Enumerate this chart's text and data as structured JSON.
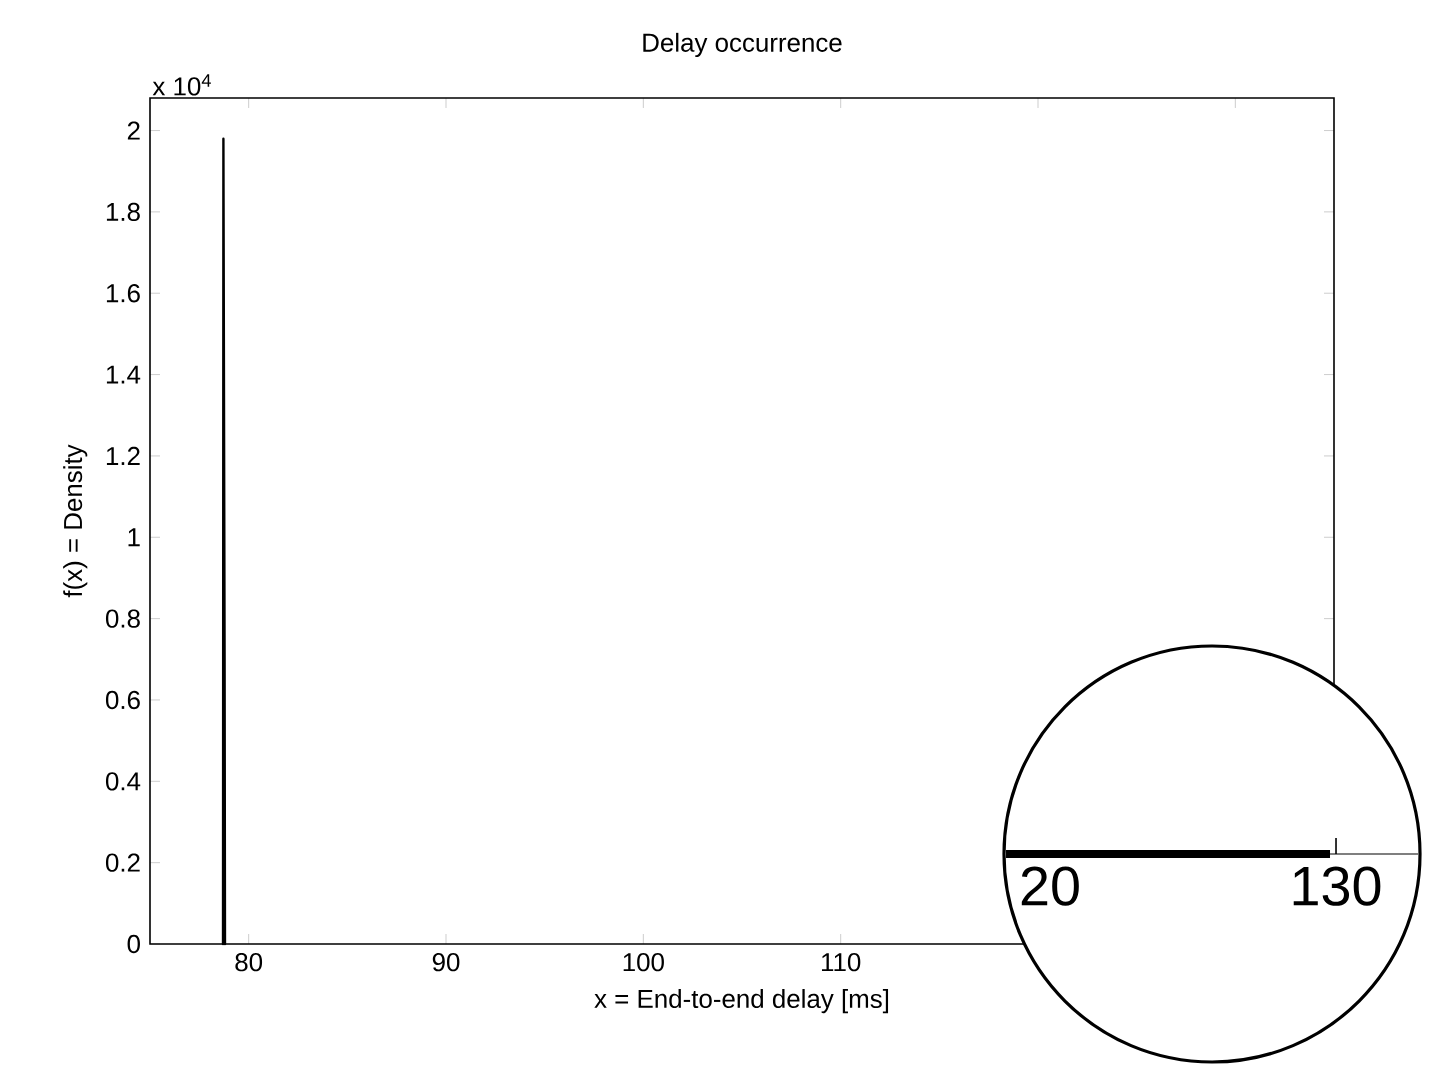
{
  "chart_data": {
    "type": "line",
    "title": "Delay occurrence",
    "xlabel": "x = End-to-end delay [ms]",
    "ylabel": "f(x) = Density",
    "annotations": [
      "x 10$^{4}$",
      "20",
      "130"
    ],
    "x": [
      78.7,
      78.72,
      78.78,
      78.8
    ],
    "values": [
      0,
      1.98,
      0.7,
      0
    ],
    "color": "#000000",
    "xlim": [
      75,
      135
    ],
    "ylim": [
      0,
      2.08
    ],
    "xticks": [
      80,
      90,
      100,
      110,
      {
        "value": 120,
        "label": null
      },
      {
        "value": 130,
        "label": null
      }
    ],
    "yticks": [
      0,
      0.2,
      0.4,
      0.6,
      0.8,
      1,
      1.2,
      1.4,
      1.6,
      1.8,
      2
    ]
  }
}
